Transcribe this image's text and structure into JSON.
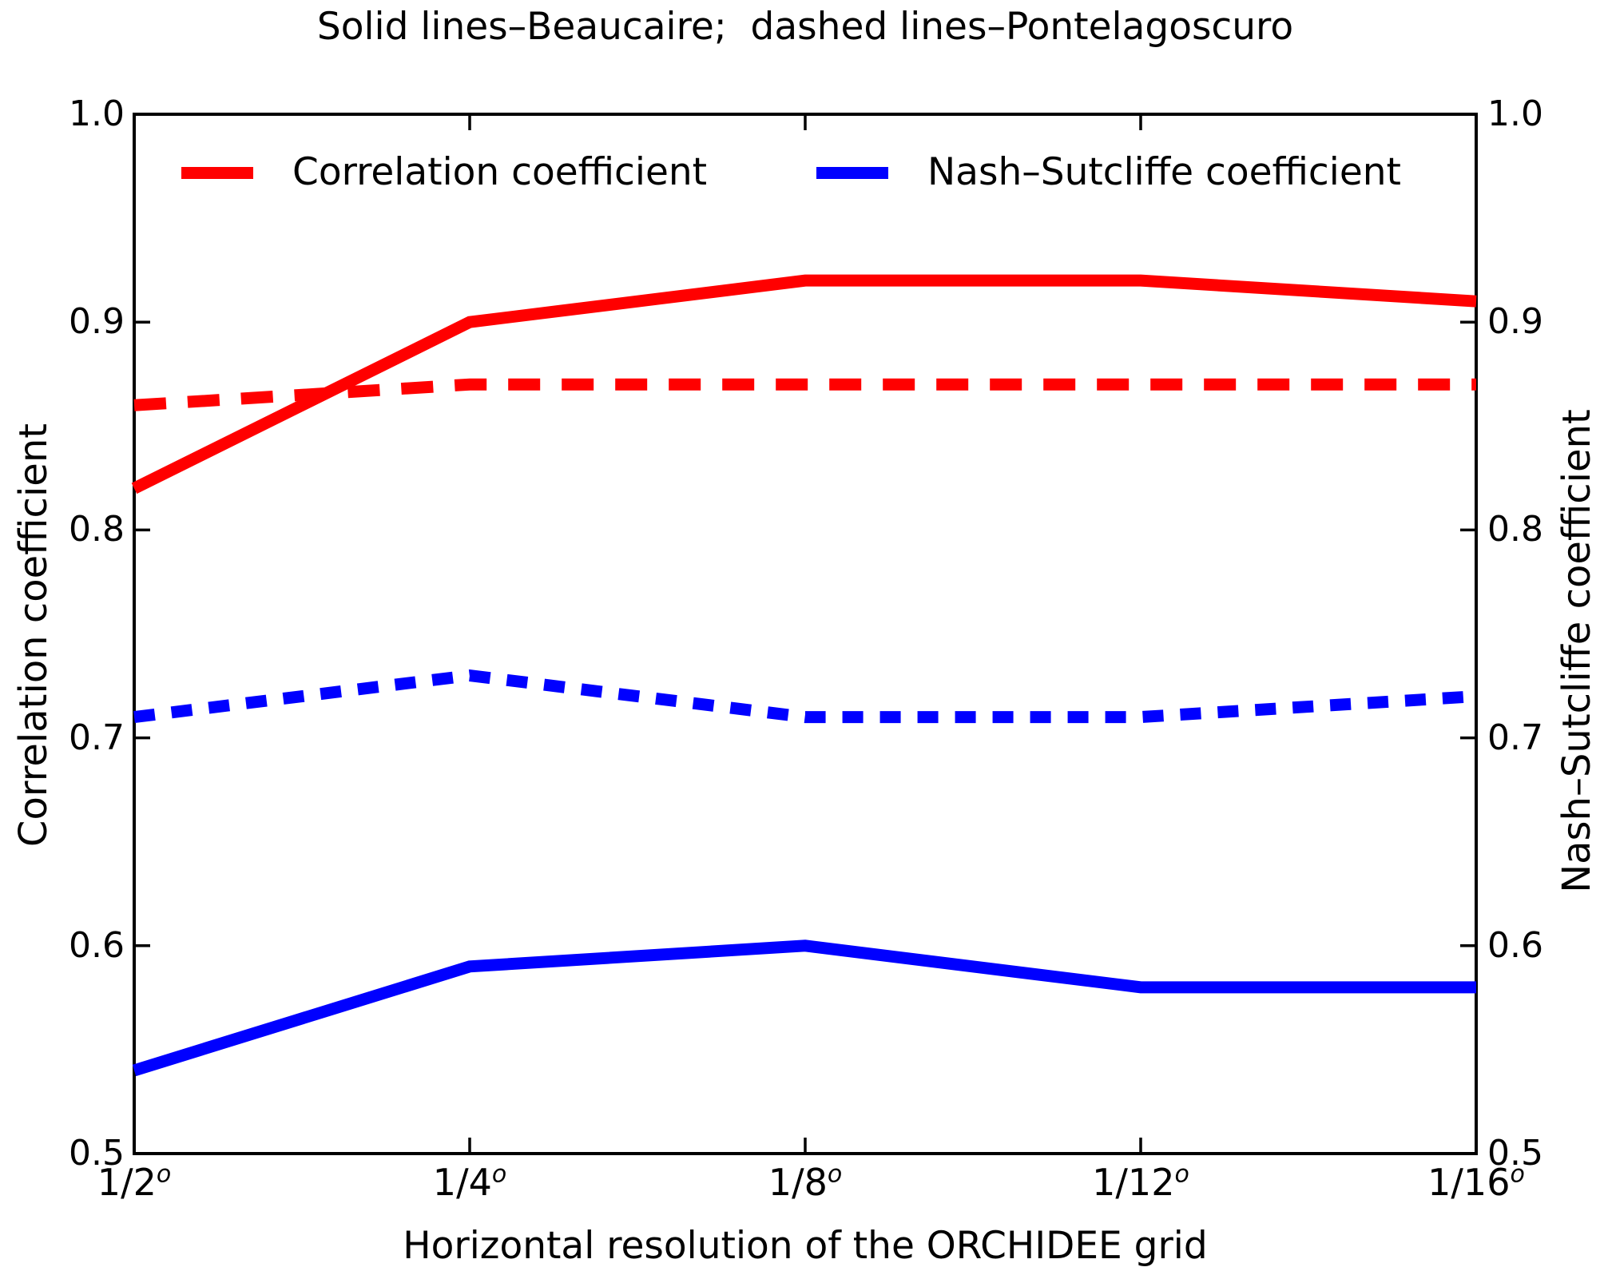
{
  "title": "Solid lines–Beaucaire;  dashed lines–Pontelagoscuro",
  "legend": {
    "position": "upper center inside plot",
    "items": [
      {
        "label": "Correlation coefficient",
        "color": "#ff0000"
      },
      {
        "label": "Nash–Sutcliffe coefficient",
        "color": "#0000ff"
      }
    ]
  },
  "chart_data": {
    "type": "line",
    "title": "Solid lines–Beaucaire;  dashed lines–Pontelagoscuro",
    "categories": [
      "1/2º",
      "1/4º",
      "1/8º",
      "1/12º",
      "1/16º"
    ],
    "x_tick_base": [
      "1/2",
      "1/4",
      "1/8",
      "1/12",
      "1/16"
    ],
    "x_tick_sup": "o",
    "xlabel": "Horizontal resolution of the ORCHIDEE grid",
    "ylabel_left": "Correlation coefficient",
    "ylabel_right": "Nash–Sutcliffe coefficient",
    "ylim": [
      0.5,
      1.0
    ],
    "yticks": [
      1.0,
      0.9,
      0.8,
      0.7,
      0.6,
      0.5
    ],
    "grid": false,
    "axis_color": "#000000",
    "series": [
      {
        "name": "Beaucaire – Correlation coefficient",
        "station": "Beaucaire",
        "metric": "Correlation coefficient",
        "style": "solid",
        "color": "#ff0000",
        "values": [
          0.82,
          0.9,
          0.92,
          0.92,
          0.91
        ]
      },
      {
        "name": "Pontelagoscuro – Correlation coefficient",
        "station": "Pontelagoscuro",
        "metric": "Correlation coefficient",
        "style": "dashed",
        "color": "#ff0000",
        "values": [
          0.86,
          0.87,
          0.87,
          0.87,
          0.87
        ]
      },
      {
        "name": "Pontelagoscuro – Nash–Sutcliffe coefficient",
        "station": "Pontelagoscuro",
        "metric": "Nash–Sutcliffe coefficient",
        "style": "dashed",
        "color": "#0000ff",
        "values": [
          0.71,
          0.73,
          0.71,
          0.71,
          0.72
        ]
      },
      {
        "name": "Beaucaire – Nash–Sutcliffe coefficient",
        "station": "Beaucaire",
        "metric": "Nash–Sutcliffe coefficient",
        "style": "solid",
        "color": "#0000ff",
        "values": [
          0.54,
          0.59,
          0.6,
          0.58,
          0.58
        ]
      }
    ]
  }
}
